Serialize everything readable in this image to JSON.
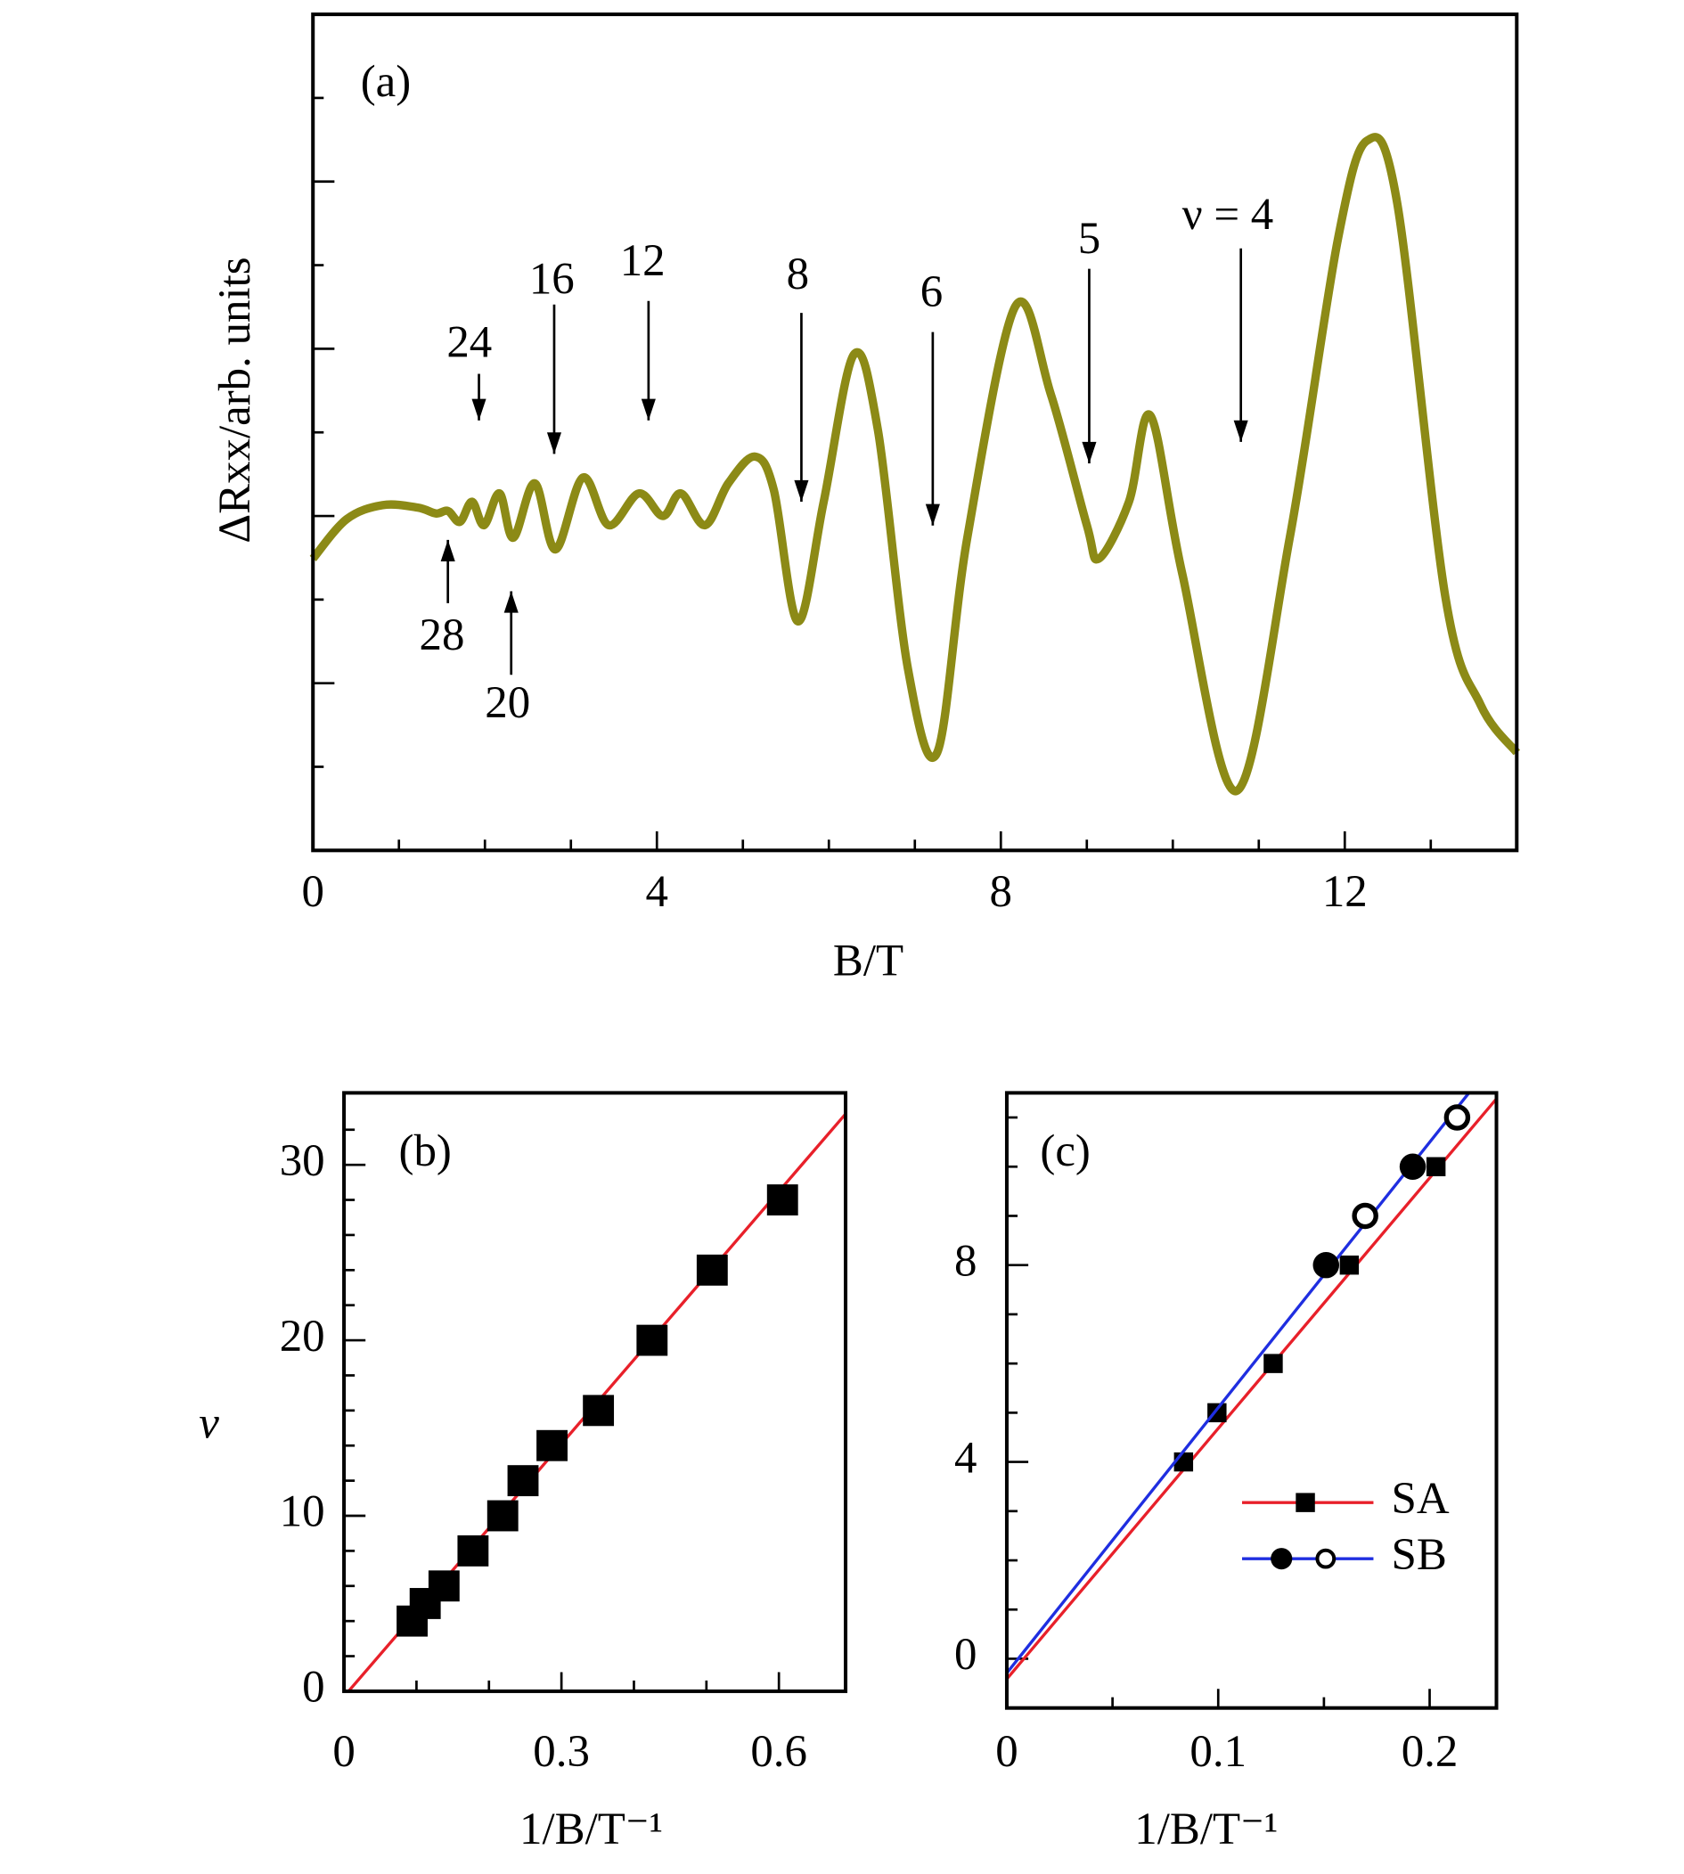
{
  "chart_data": [
    {
      "type": "line",
      "panel_label": "(a)",
      "x_label": "B/T",
      "y_label": "ΔRxx/arb. units",
      "xlim": [
        0,
        14
      ],
      "xticks": [
        0,
        4,
        8,
        12
      ],
      "xminorticks": [
        1,
        2,
        3,
        5,
        6,
        7,
        9,
        10,
        11,
        13
      ],
      "ylim": [
        0,
        10
      ],
      "yticks": [
        2,
        4,
        6,
        8
      ],
      "yminorticks": [
        1,
        3,
        5,
        7,
        9
      ],
      "ytick_labels": false,
      "series": [
        {
          "color": "#8c8a16",
          "x": [
            0,
            0.39,
            0.81,
            1.22,
            1.43,
            1.57,
            1.71,
            1.85,
            1.99,
            2.17,
            2.33,
            2.58,
            2.82,
            3.14,
            3.44,
            3.79,
            4.07,
            4.28,
            4.56,
            4.83,
            5.14,
            5.36,
            5.64,
            5.94,
            6.29,
            6.57,
            6.92,
            7.26,
            7.61,
            8.17,
            8.58,
            9.0,
            9.14,
            9.49,
            9.74,
            10.11,
            10.74,
            11.36,
            11.92,
            12.26,
            12.61,
            13.17,
            13.58,
            14.0
          ],
          "values": [
            3.49,
            3.96,
            4.13,
            4.1,
            4.03,
            4.06,
            3.93,
            4.17,
            3.89,
            4.27,
            3.74,
            4.39,
            3.6,
            4.46,
            3.89,
            4.27,
            4.0,
            4.27,
            3.89,
            4.39,
            4.71,
            4.31,
            2.74,
            4.17,
            5.93,
            5.03,
            2.17,
            1.17,
            3.74,
            6.51,
            5.46,
            3.89,
            3.49,
            4.17,
            5.2,
            3.31,
            0.71,
            3.74,
            7.31,
            8.49,
            7.74,
            3.03,
            1.74,
            1.17
          ]
        }
      ],
      "annotations": [
        {
          "text": "24"
        },
        {
          "text": "16"
        },
        {
          "text": "12"
        },
        {
          "text": "8"
        },
        {
          "text": "6"
        },
        {
          "text": "5"
        },
        {
          "text": "ν = 4"
        },
        {
          "text": "28"
        },
        {
          "text": "20"
        }
      ]
    },
    {
      "type": "scatter",
      "panel_label": "(b)",
      "x_label": "1/B/T⁻¹",
      "y_label": "ν",
      "xlim": [
        0,
        0.692
      ],
      "xticks": [
        0,
        0.3,
        0.6
      ],
      "xminorticks": [
        0.1,
        0.2,
        0.4,
        0.5
      ],
      "ylim": [
        0,
        34.1
      ],
      "yticks": [
        0,
        10,
        20,
        30
      ],
      "yminorticks": [
        2,
        4,
        6,
        8,
        12,
        14,
        16,
        18,
        22,
        24,
        26,
        28,
        32
      ],
      "series": [
        {
          "marker": "square",
          "marker_color": "#000000",
          "x": [
            0.094,
            0.112,
            0.138,
            0.178,
            0.219,
            0.247,
            0.287,
            0.351,
            0.425,
            0.508,
            0.605
          ],
          "values": [
            4,
            5,
            6,
            8,
            10,
            12,
            14,
            16,
            20,
            24,
            28
          ],
          "fit": {
            "color": "#e8202a",
            "x": [
              0,
              0.692
            ],
            "values": [
              -0.3,
              32.9
            ]
          }
        }
      ]
    },
    {
      "type": "scatter",
      "panel_label": "(c)",
      "x_label": "1/B/T⁻¹",
      "xlim": [
        0,
        0.2316
      ],
      "xticks": [
        0,
        0.1,
        0.2
      ],
      "xminorticks": [
        0.05,
        0.15
      ],
      "ylim": [
        -1,
        11.5
      ],
      "yticks": [
        0,
        4,
        8
      ],
      "yminorticks": [
        -1,
        1,
        2,
        3,
        5,
        6,
        7,
        9,
        10,
        11
      ],
      "series": [
        {
          "name": "SA",
          "marker": "square",
          "marker_color": "#000000",
          "x": [
            0.0836,
            0.0994,
            0.126,
            0.162,
            0.203
          ],
          "values": [
            4,
            5,
            6,
            8,
            10
          ],
          "fit": {
            "color": "#e8202a",
            "x": [
              0,
              0.2316
            ],
            "values": [
              -0.41,
              11.38
            ]
          }
        },
        {
          "name": "SB",
          "marker": "circle",
          "marker_color": "#000000",
          "marker_fill": [
            "filled",
            "filled",
            "open",
            "open"
          ],
          "x": [
            0.151,
            0.192,
            0.1695,
            0.213
          ],
          "values": [
            8,
            10,
            9,
            11
          ],
          "fit": {
            "color": "#1f2ee0",
            "x": [
              0,
              0.2186
            ],
            "values": [
              -0.29,
              11.5
            ]
          }
        }
      ]
    }
  ]
}
